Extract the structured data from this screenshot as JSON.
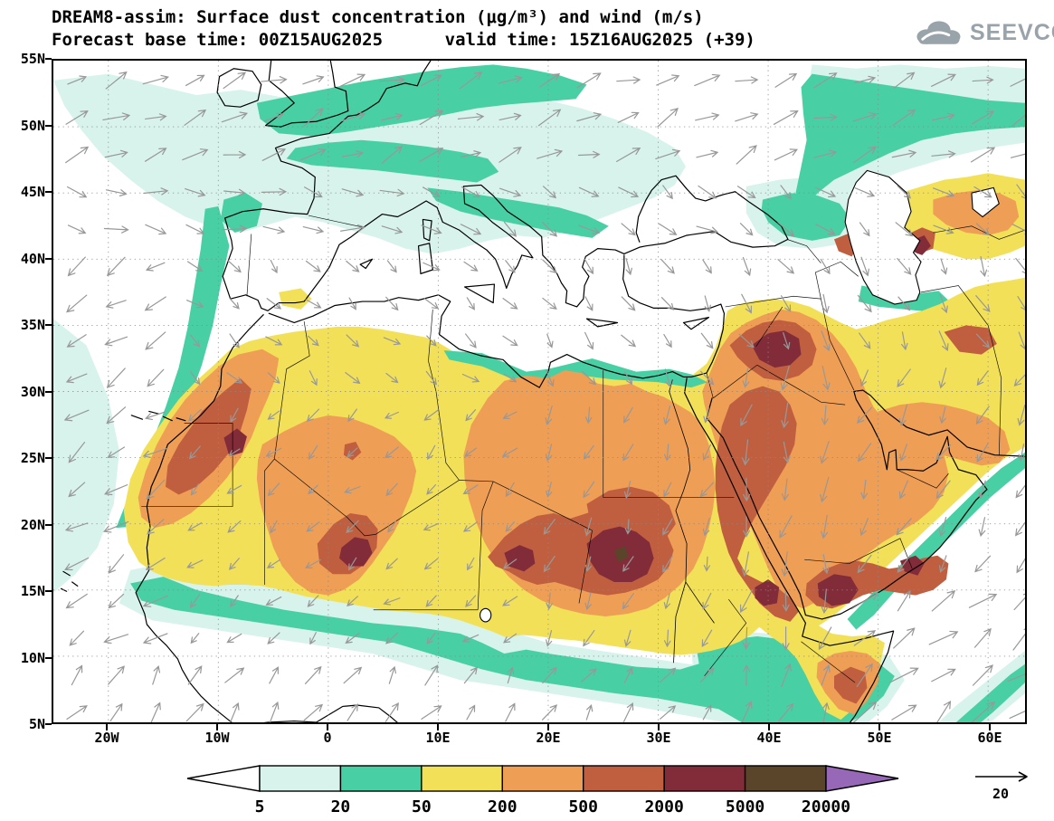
{
  "header": {
    "title_line1": "DREAM8-assim: Surface dust concentration (μg/m³) and wind (m/s)",
    "title_line2": "Forecast base time: 00Z15AUG2025      valid time: 15Z16AUG2025 (+39)"
  },
  "branding": {
    "logo_text": "SEEVCCC",
    "logo_color": "#99a3aa"
  },
  "axes": {
    "lat_ticks": [
      {
        "label": "55N",
        "lat": 55
      },
      {
        "label": "50N",
        "lat": 50
      },
      {
        "label": "45N",
        "lat": 45
      },
      {
        "label": "40N",
        "lat": 40
      },
      {
        "label": "35N",
        "lat": 35
      },
      {
        "label": "30N",
        "lat": 30
      },
      {
        "label": "25N",
        "lat": 25
      },
      {
        "label": "20N",
        "lat": 20
      },
      {
        "label": "15N",
        "lat": 15
      },
      {
        "label": "10N",
        "lat": 10
      },
      {
        "label": "5N",
        "lat": 5
      }
    ],
    "lon_ticks": [
      {
        "label": "20W",
        "lon": -20
      },
      {
        "label": "10W",
        "lon": -10
      },
      {
        "label": "0",
        "lon": 0
      },
      {
        "label": "10E",
        "lon": 10
      },
      {
        "label": "20E",
        "lon": 20
      },
      {
        "label": "30E",
        "lon": 30
      },
      {
        "label": "40E",
        "lon": 40
      },
      {
        "label": "50E",
        "lon": 50
      },
      {
        "label": "60E",
        "lon": 60
      }
    ]
  },
  "legend": {
    "thresholds": [
      "5",
      "20",
      "50",
      "200",
      "500",
      "2000",
      "5000",
      "20000"
    ],
    "order": [
      "under5",
      "c5",
      "c20",
      "c50",
      "c200",
      "c500",
      "c2000",
      "c5000",
      "over20000"
    ],
    "palette": {
      "under5": "#ffffff",
      "c5": "#d8f3ec",
      "c20": "#49cfa4",
      "c50": "#f2e158",
      "c200": "#ef9e55",
      "c500": "#c05f40",
      "c2000": "#822c3a",
      "c5000": "#5a452a",
      "over20000": "#9868b8"
    },
    "wind_ref": "20"
  },
  "wind": {
    "color": "#989898",
    "zones": [
      {
        "lonMin": -25,
        "lonMax": 65,
        "latMin": 47,
        "latMax": 56,
        "angle": 22,
        "len": 1.3
      },
      {
        "lonMin": -25,
        "lonMax": 10,
        "latMin": 40,
        "latMax": 47,
        "angle": -12,
        "len": 1.15
      },
      {
        "lonMin": 10,
        "lonMax": 65,
        "latMin": 40,
        "latMax": 47,
        "angle": -35,
        "len": 1.05
      },
      {
        "lonMin": -25,
        "lonMax": -13.5,
        "latMin": 10,
        "latMax": 40,
        "angle": 213,
        "len": 1.25
      },
      {
        "lonMin": -25,
        "lonMax": 12,
        "latMin": 0,
        "latMax": 10,
        "angle": 55,
        "len": 1.15
      },
      {
        "lonMin": -13.5,
        "lonMax": 20,
        "latMin": 30,
        "latMax": 40,
        "angle": -42,
        "len": 0.85
      },
      {
        "lonMin": 20,
        "lonMax": 36,
        "latMin": 30,
        "latMax": 40,
        "angle": -55,
        "len": 0.9
      },
      {
        "lonMin": -13.5,
        "lonMax": 20,
        "latMin": 10,
        "latMax": 30,
        "angle": 222,
        "len": 0.8
      },
      {
        "lonMin": 20,
        "lonMax": 35,
        "latMin": 10,
        "latMax": 30,
        "angle": 248,
        "len": 0.9
      },
      {
        "lonMin": 35,
        "lonMax": 48,
        "latMin": 10,
        "latMax": 32,
        "angle": 262,
        "len": 1.2
      },
      {
        "lonMin": 48,
        "lonMax": 65,
        "latMin": 15,
        "latMax": 32,
        "angle": 243,
        "len": 1.05
      },
      {
        "lonMin": 36,
        "lonMax": 65,
        "latMin": 32,
        "latMax": 40,
        "angle": -62,
        "len": 1.0
      },
      {
        "lonMin": 48,
        "lonMax": 65,
        "latMin": 0,
        "latMax": 15,
        "angle": 38,
        "len": 1.5
      },
      {
        "lonMin": 35,
        "lonMax": 48,
        "latMin": 0,
        "latMax": 10,
        "angle": 70,
        "len": 1.15
      },
      {
        "lonMin": 12,
        "lonMax": 35,
        "latMin": 0,
        "latMax": 10,
        "angle": 55,
        "len": 1.0
      }
    ],
    "default_zone": {
      "angle": 0,
      "len": 0.8
    }
  }
}
